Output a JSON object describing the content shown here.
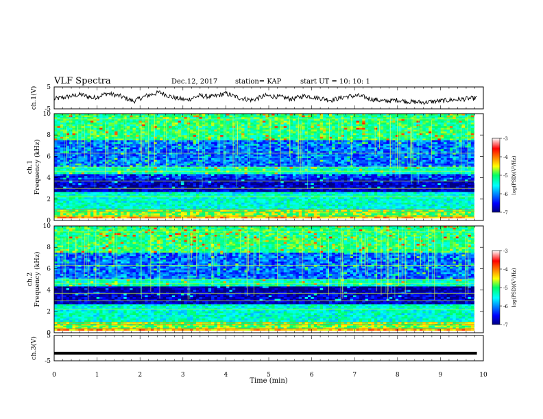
{
  "header": {
    "title": "VLF Spectra",
    "date": "Dec.12, 2017",
    "station": "station= KAP",
    "start": "start  UT =   10: 10: 1"
  },
  "chart_data": [
    {
      "type": "line",
      "ylabel": "ch.1(V)",
      "ylim": [
        -5,
        5
      ],
      "yticks": [
        "5",
        "-5"
      ],
      "xlim": [
        0,
        10
      ],
      "description_of_series": "noisy waveform oscillating around 0 V",
      "series": [
        {
          "values": [
            -0.5,
            0.5,
            1.5,
            0.0,
            2.0,
            0.8,
            -1.5,
            1.0,
            2.5,
            0.2,
            -1.0,
            1.0,
            0.5,
            2.0,
            0.0,
            -1.0,
            1.0,
            0.5,
            -0.5,
            1.0,
            0.0,
            -1.0,
            0.5,
            1.0,
            -0.5,
            -1.5,
            -1.0,
            -1.8,
            -2.0,
            -1.5,
            -1.0,
            -0.5,
            0.0
          ]
        }
      ]
    },
    {
      "type": "heatmap",
      "ylabel": "ch.1\nFrequency (kHz)",
      "ylim": [
        0,
        10
      ],
      "yticks": [
        "0",
        "2",
        "4",
        "6",
        "8",
        "10"
      ],
      "xlim": [
        0,
        10
      ],
      "colorbar": {
        "label": "log(PSD)(V²/Hz)",
        "range": [
          -7,
          -3
        ],
        "ticks": [
          "-3",
          "-4",
          "-5",
          "-6",
          "-7"
        ]
      }
    },
    {
      "type": "heatmap",
      "ylabel": "ch.2\nFrequency (kHz)",
      "ylim": [
        0,
        10
      ],
      "yticks": [
        "0",
        "2",
        "4",
        "6",
        "8",
        "10"
      ],
      "xlim": [
        0,
        10
      ],
      "colorbar": {
        "label": "log(PSD)(V²/Hz)",
        "range": [
          -7,
          -3
        ],
        "ticks": [
          "-3",
          "-4",
          "-5",
          "-6",
          "-7"
        ]
      }
    },
    {
      "type": "line",
      "ylabel": "ch.3(V)",
      "ylim": [
        -5,
        5
      ],
      "yticks": [
        "5",
        "-5"
      ],
      "xlim": [
        0,
        10
      ],
      "series": [
        {
          "values": [
            -2.0,
            -2.0
          ]
        }
      ]
    }
  ],
  "xaxis": {
    "label": "Time  (min)",
    "ticks": [
      "0",
      "1",
      "2",
      "3",
      "4",
      "5",
      "6",
      "7",
      "8",
      "9",
      "10"
    ]
  }
}
